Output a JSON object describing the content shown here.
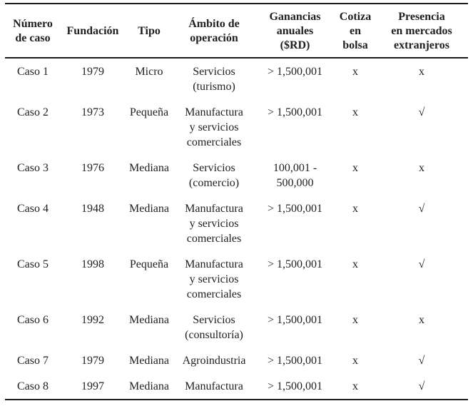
{
  "page": {
    "background_color": "#ffffff",
    "text_color": "#1f1f1f",
    "rule_color": "#1a1a1a"
  },
  "table": {
    "name": "tabla-casos-de-estudio",
    "columns": [
      {
        "id": "caso",
        "label": "Número\nde caso"
      },
      {
        "id": "fundacion",
        "label": "Fundación"
      },
      {
        "id": "tipo",
        "label": "Tipo"
      },
      {
        "id": "ambito",
        "label": "Ámbito de\noperación"
      },
      {
        "id": "ganancias",
        "label": "Ganancias\nanuales\n($RD)"
      },
      {
        "id": "cotiza",
        "label": "Cotiza\nen\nbolsa"
      },
      {
        "id": "presencia",
        "label": "Presencia\nen mercados\nextranjeros"
      }
    ],
    "marks": {
      "yes_glyph": "√",
      "no_glyph": "x"
    },
    "rows": [
      [
        "Caso 1",
        "1979",
        "Micro",
        "Servicios\n(turismo)",
        "> 1,500,001",
        "x",
        "x"
      ],
      [
        "Caso 2",
        "1973",
        "Pequeña",
        "Manufactura\ny servicios\ncomerciales",
        "> 1,500,001",
        "x",
        "√"
      ],
      [
        "Caso 3",
        "1976",
        "Mediana",
        "Servicios\n(comercio)",
        "100,001 -\n500,000",
        "x",
        "x"
      ],
      [
        "Caso 4",
        "1948",
        "Mediana",
        "Manufactura\ny servicios\ncomerciales",
        "> 1,500,001",
        "x",
        "√"
      ],
      [
        "Caso 5",
        "1998",
        "Pequeña",
        "Manufactura\ny servicios\ncomerciales",
        "> 1,500,001",
        "x",
        "√"
      ],
      [
        "Caso 6",
        "1992",
        "Mediana",
        "Servicios\n(consultoría)",
        "> 1,500,001",
        "x",
        "x"
      ],
      [
        "Caso 7",
        "1979",
        "Mediana",
        "Agroindustria",
        "> 1,500,001",
        "x",
        "√"
      ],
      [
        "Caso 8",
        "1997",
        "Mediana",
        "Manufactura",
        "> 1,500,001",
        "x",
        "√"
      ]
    ]
  }
}
